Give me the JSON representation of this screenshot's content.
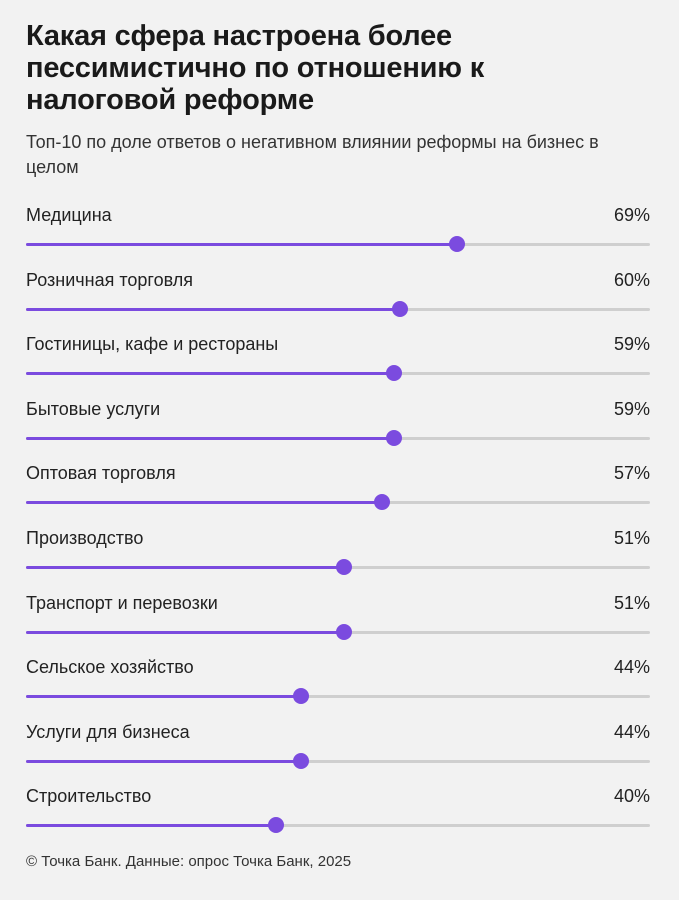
{
  "header": {
    "title": "Какая сфера настроена более пессимистично по отношению к налоговой реформе",
    "subtitle": "Топ-10 по доле ответов о негативном влиянии реформы на бизнес в целом"
  },
  "footer": {
    "source": "© Точка Банк. Данные: опрос Точка Банк, 2025"
  },
  "colors": {
    "accent": "#7b4bdf",
    "track": "#cfcfcf",
    "background": "#f2f2f2"
  },
  "chart_data": {
    "type": "bar",
    "orientation": "horizontal",
    "title": "Какая сфера настроена более пессимистично по отношению к налоговой реформе",
    "subtitle": "Топ-10 по доле ответов о негативном влиянии реформы на бизнес в целом",
    "xlim": [
      0,
      100
    ],
    "unit": "%",
    "categories": [
      "Медицина",
      "Розничная торговля",
      "Гостиницы, кафе и рестораны",
      "Бытовые услуги",
      "Оптовая торговля",
      "Производство",
      "Транспорт и перевозки",
      "Сельское хозяйство",
      "Услуги для бизнеса",
      "Строительство"
    ],
    "values": [
      69,
      60,
      59,
      59,
      57,
      51,
      51,
      44,
      44,
      40
    ],
    "labels": [
      "69%",
      "60%",
      "59%",
      "59%",
      "57%",
      "51%",
      "51%",
      "44%",
      "44%",
      "40%"
    ]
  }
}
